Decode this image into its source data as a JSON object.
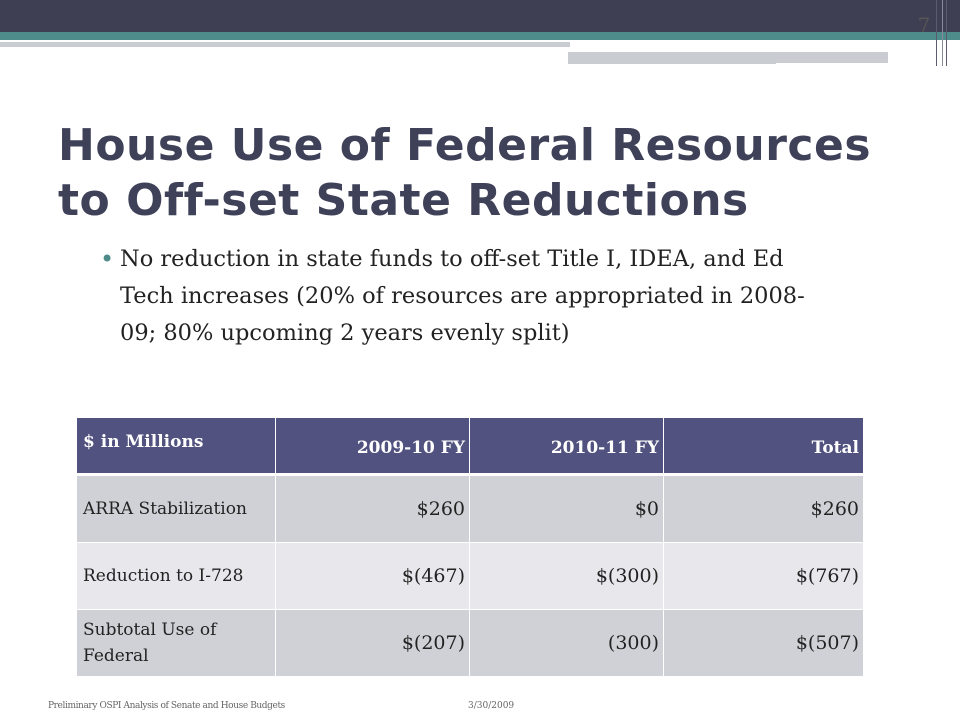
{
  "slide": {
    "number": "7",
    "title": "House Use of Federal Resources to Off-set State Reductions",
    "bullet_mark": "•",
    "bullets": [
      "No reduction in state funds to off-set Title I, IDEA, and Ed Tech increases (20% of resources are appropriated in 2008-09; 80% upcoming 2 years evenly split)"
    ]
  },
  "table": {
    "headers": [
      "$ in Millions",
      "2009-10 FY",
      "2010-11 FY",
      "Total"
    ],
    "rows": [
      [
        "ARRA Stabilization",
        "$260",
        "$0",
        "$260"
      ],
      [
        "Reduction to I-728",
        "$(467)",
        "$(300)",
        "$(767)"
      ],
      [
        "Subtotal Use of Federal",
        "$(207)",
        "(300)",
        "$(507)"
      ]
    ]
  },
  "footer": {
    "left": "Preliminary OSPI Analysis of Senate and House Budgets",
    "date": "3/30/2009"
  },
  "colors": {
    "top_bar": "#3e3f52",
    "accent_teal": "#4d8c8a",
    "table_header": "#51527f",
    "title_text": "#3e4158"
  }
}
